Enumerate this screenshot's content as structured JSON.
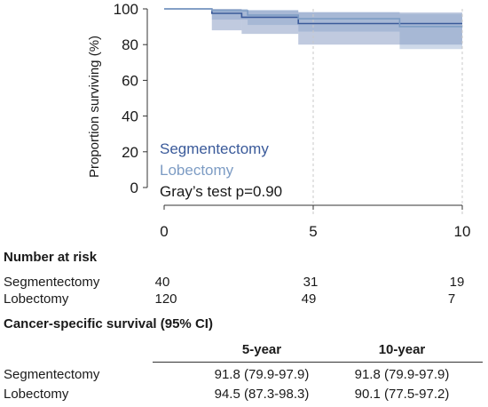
{
  "chart_data": {
    "type": "line",
    "subtype": "kaplan-meier",
    "ylabel": "Proportion surviving (%)",
    "xlabel": "",
    "xlim": [
      0,
      10
    ],
    "ylim": [
      0,
      100
    ],
    "xticks": [
      0,
      5,
      10
    ],
    "yticks": [
      0,
      20,
      40,
      60,
      80,
      100
    ],
    "grid": "vertical dashed at x=5, x=10",
    "legend_position": "bottom-left",
    "series": [
      {
        "name": "Segmentectomy",
        "color": "#3a5a9a",
        "steps": [
          [
            0,
            100
          ],
          [
            1.6,
            100
          ],
          [
            1.6,
            97.5
          ],
          [
            2.6,
            97.5
          ],
          [
            2.6,
            95.3
          ],
          [
            4.5,
            95.3
          ],
          [
            4.5,
            91.8
          ],
          [
            10,
            91.8
          ]
        ],
        "ci_band": [
          [
            1.6,
            88,
            100
          ],
          [
            2.6,
            86,
            99
          ],
          [
            4.5,
            80,
            98
          ],
          [
            10,
            80,
            98
          ]
        ]
      },
      {
        "name": "Lobectomy",
        "color": "#7d9cc4",
        "steps": [
          [
            0,
            100
          ],
          [
            1.6,
            100
          ],
          [
            1.6,
            99
          ],
          [
            2.8,
            99
          ],
          [
            2.8,
            96.5
          ],
          [
            4.5,
            96.5
          ],
          [
            4.5,
            94.5
          ],
          [
            7.9,
            94.5
          ],
          [
            7.9,
            90.1
          ],
          [
            10,
            90.1
          ]
        ],
        "ci_band": [
          [
            1.6,
            94,
            100
          ],
          [
            2.8,
            91,
            99.5
          ],
          [
            4.5,
            87.3,
            98.3
          ],
          [
            7.9,
            77.5,
            97.2
          ],
          [
            10,
            77.5,
            97.2
          ]
        ]
      }
    ],
    "annotation": "Gray’s test p=0.90"
  },
  "risk_table": {
    "title": "Number at risk",
    "rows": [
      {
        "label": "Segmentectomy",
        "values": [
          "40",
          "31",
          "19"
        ]
      },
      {
        "label": "Lobectomy",
        "values": [
          "120",
          "49",
          "7"
        ]
      }
    ]
  },
  "survival_table": {
    "title": "Cancer-specific survival (95% CI)",
    "headers": [
      "5-year",
      "10-year"
    ],
    "rows": [
      {
        "label": "Segmentectomy",
        "values": [
          "91.8 (79.9-97.9)",
          "91.8 (79.9-97.9)"
        ]
      },
      {
        "label": "Lobectomy",
        "values": [
          "94.5 (87.3-98.3)",
          "90.1 (77.5-97.2)"
        ]
      }
    ]
  }
}
